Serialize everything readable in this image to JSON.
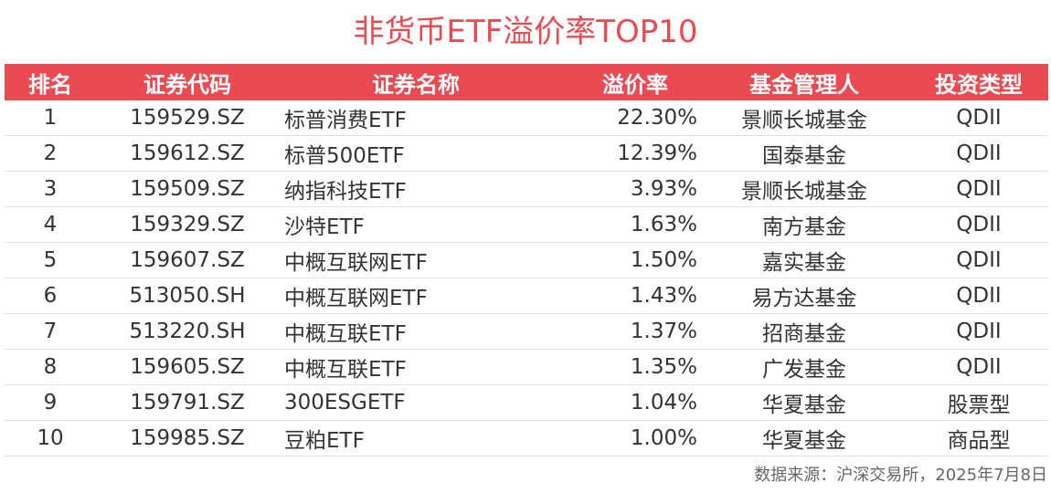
{
  "title": "非货币ETF溢价率TOP10",
  "headers": [
    "排名",
    "证券代码",
    "证券名称",
    "溢价率",
    "基金管理人",
    "投资类型"
  ],
  "rows": [
    {
      "rank": "1",
      "code": "159529.SZ",
      "name": "标普消费ETF",
      "premium": "22.30%",
      "manager": "景顺长城基金",
      "type": "QDII"
    },
    {
      "rank": "2",
      "code": "159612.SZ",
      "name": "标普500ETF",
      "premium": "12.39%",
      "manager": "国泰基金",
      "type": "QDII"
    },
    {
      "rank": "3",
      "code": "159509.SZ",
      "name": "纳指科技ETF",
      "premium": "3.93%",
      "manager": "景顺长城基金",
      "type": "QDII"
    },
    {
      "rank": "4",
      "code": "159329.SZ",
      "name": "沙特ETF",
      "premium": "1.63%",
      "manager": "南方基金",
      "type": "QDII"
    },
    {
      "rank": "5",
      "code": "159607.SZ",
      "name": "中概互联网ETF",
      "premium": "1.50%",
      "manager": "嘉实基金",
      "type": "QDII"
    },
    {
      "rank": "6",
      "code": "513050.SH",
      "name": "中概互联网ETF",
      "premium": "1.43%",
      "manager": "易方达基金",
      "type": "QDII"
    },
    {
      "rank": "7",
      "code": "513220.SH",
      "name": "中概互联ETF",
      "premium": "1.37%",
      "manager": "招商基金",
      "type": "QDII"
    },
    {
      "rank": "8",
      "code": "159605.SZ",
      "name": "中概互联ETF",
      "premium": "1.35%",
      "manager": "广发基金",
      "type": "QDII"
    },
    {
      "rank": "9",
      "code": "159791.SZ",
      "name": "300ESGETF",
      "premium": "1.04%",
      "manager": "华夏基金",
      "type": "股票型"
    },
    {
      "rank": "10",
      "code": "159985.SZ",
      "name": "豆粕ETF",
      "premium": "1.00%",
      "manager": "华夏基金",
      "type": "商品型"
    }
  ],
  "source": "数据来源：沪深交易所，2025年7月8日",
  "colors": {
    "accent": "#ea4a51",
    "header_text": "#ffffff",
    "body_text": "#333333",
    "source_text": "#666666",
    "row_border": "#e2e2e2"
  }
}
